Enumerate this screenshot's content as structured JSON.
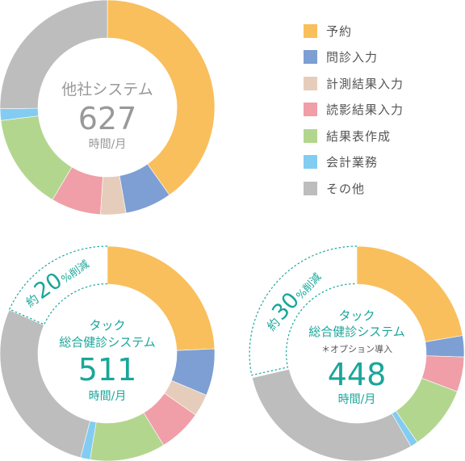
{
  "colors": {
    "background": "#ffffff",
    "text_gray": "#999999",
    "accent_teal": "#1aa69a"
  },
  "legend": [
    {
      "label": "予約",
      "color": "#f9bf5c"
    },
    {
      "label": "問診入力",
      "color": "#7e9fd3"
    },
    {
      "label": "計測結果入力",
      "color": "#e6cdbb"
    },
    {
      "label": "読影結果入力",
      "color": "#f09ea8"
    },
    {
      "label": "結果表作成",
      "color": "#b3d68f"
    },
    {
      "label": "会計業務",
      "color": "#82ccf2"
    },
    {
      "label": "その他",
      "color": "#bdbdbd"
    }
  ],
  "chart_data": [
    {
      "type": "pie",
      "title": "他社システム",
      "total": 627,
      "unit": "時間/月",
      "categories": [
        "予約",
        "問診入力",
        "計測結果入力",
        "読影結果入力",
        "結果表作成",
        "会計業務",
        "その他"
      ],
      "values": [
        252,
        44,
        24,
        47,
        91,
        11,
        158
      ]
    },
    {
      "type": "pie",
      "title_line1": "タック",
      "title_line2": "総合健診システム",
      "total": 511,
      "unit": "時間/月",
      "reduction_prefix": "約",
      "reduction_value": "20",
      "reduction_suffix": "%削減",
      "categories": [
        "予約",
        "問診入力",
        "計測結果入力",
        "読影結果入力",
        "結果表作成",
        "会計業務",
        "その他"
      ],
      "values": [
        152,
        44,
        21,
        41,
        71,
        9,
        173
      ]
    },
    {
      "type": "pie",
      "title_line1": "タック",
      "title_line2": "総合健診システム",
      "note": "＊オプション導入",
      "total": 448,
      "unit": "時間/月",
      "reduction_prefix": "約",
      "reduction_value": "30",
      "reduction_suffix": "%削減",
      "categories": [
        "予約",
        "問診入力",
        "読影結果入力",
        "結果表作成",
        "会計業務",
        "その他"
      ],
      "values": [
        140,
        20,
        33,
        61,
        7,
        187
      ]
    }
  ]
}
